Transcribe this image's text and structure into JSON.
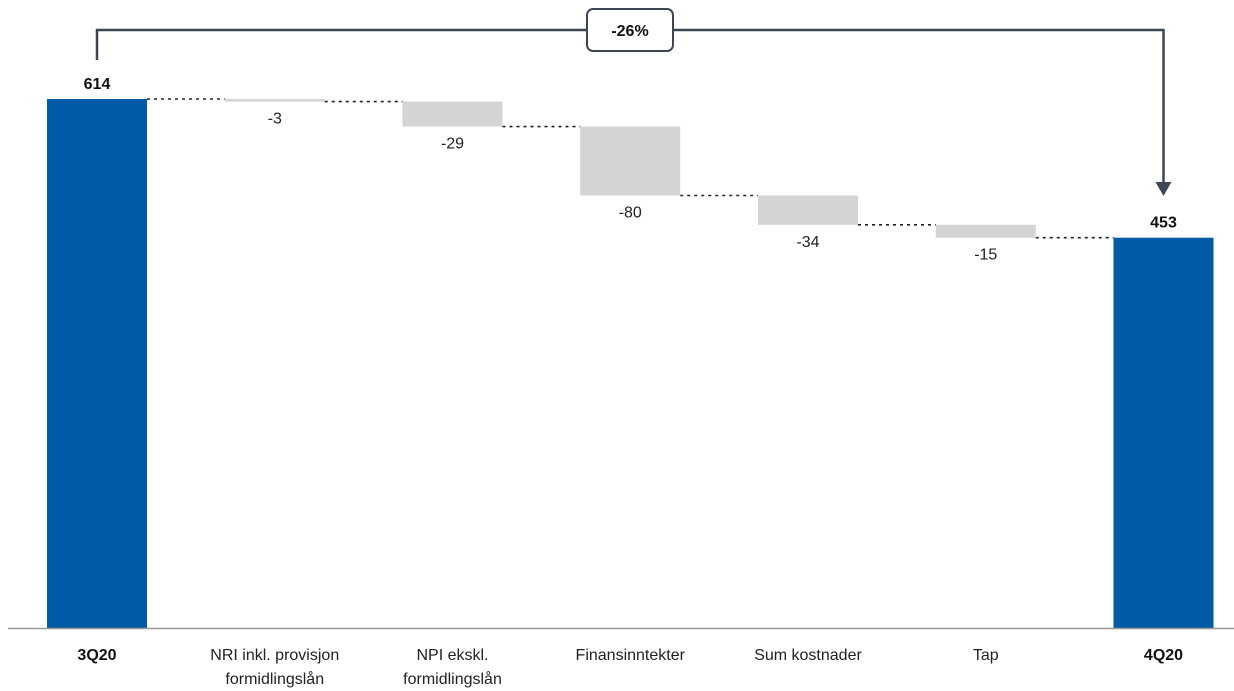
{
  "chart_data": {
    "type": "waterfall",
    "categories": [
      "3Q20",
      [
        "NRI inkl. provisjon",
        "formidlingslån"
      ],
      [
        "NPI ekskl.",
        "formidlingslån"
      ],
      "Finansinntekter",
      "Sum kostnader",
      "Tap",
      "4Q20"
    ],
    "values": [
      614,
      -3,
      -29,
      -80,
      -34,
      -15,
      453
    ],
    "value_labels": [
      "614",
      "-3",
      "-29",
      "-80",
      "-34",
      "-15",
      "453"
    ],
    "kinds": [
      "total",
      "delta",
      "delta",
      "delta",
      "delta",
      "delta",
      "total"
    ],
    "ylim": [
      0,
      614
    ],
    "change_label": "-26%",
    "connectors": "dotted",
    "colors": {
      "total": "#005aa5",
      "delta": "#d4d4d4",
      "axis": "#999999",
      "bracket": "#3d4652"
    }
  }
}
